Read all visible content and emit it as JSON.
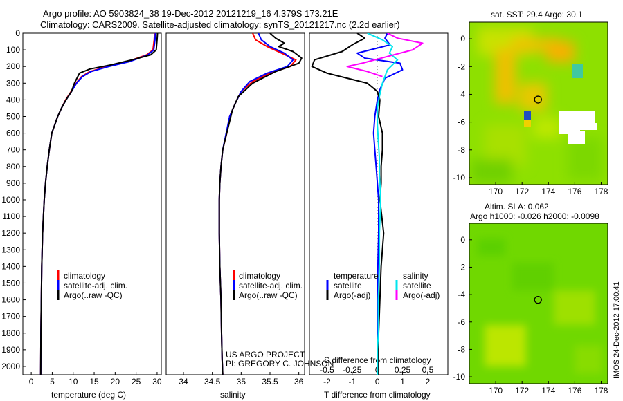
{
  "header": {
    "line1": "Argo profile: AO 5903824_38 19-Dec-2012 20121219_16 4.379S 173.21E",
    "line2": "Climatology: CARS2009. Satellite-adjusted climatology: synTS_20121217.nc (2.2d earlier)"
  },
  "map_top": {
    "label": "sat. SST: 29.4 Argo: 30.1"
  },
  "map_bottom": {
    "label1": "Altim. SLA: 0.062",
    "label2": "Argo h1000: -0.026 h2000: -0.0098"
  },
  "credit": {
    "line1": "US ARGO PROJECT",
    "line2": "PI: GREGORY C. JOHNSON"
  },
  "side_stamp": "IMOS 24-Dec-2012 17:00:41",
  "legend_ts": {
    "items": [
      "climatology",
      "satellite-adj. clim.",
      "Argo(..raw -QC)"
    ]
  },
  "legend_diff": {
    "temp_header": "temperature",
    "sal_header": "salinity",
    "temp_items": [
      "satellite",
      "Argo(-adj)"
    ],
    "sal_items": [
      "satellite",
      "Argo(-adj)"
    ]
  },
  "colors": {
    "climatology": "#ff0000",
    "satellite": "#0000ff",
    "argo": "#000000",
    "sal_satellite": "#00e5ee",
    "sal_argo": "#ff00ff"
  },
  "chart_data": [
    {
      "type": "line",
      "xlabel": "temperature (deg C)",
      "ylabel": "",
      "xlim": [
        -2,
        31
      ],
      "ylim": [
        2050,
        0
      ],
      "xticks": [
        0,
        5,
        10,
        15,
        20,
        25,
        30
      ],
      "yticks": [
        0,
        100,
        200,
        300,
        400,
        500,
        600,
        700,
        800,
        900,
        1000,
        1100,
        1200,
        1300,
        1400,
        1500,
        1600,
        1700,
        1800,
        1900,
        2000
      ],
      "series": [
        {
          "name": "climatology",
          "color": "#ff0000",
          "x": [
            29.4,
            29.3,
            29.0,
            27.5,
            23,
            18,
            14,
            12,
            10.7,
            9.5,
            8.2,
            7.2,
            6.3,
            5.6,
            4.9,
            4.3,
            3.8,
            3.4,
            3.1,
            2.9,
            2.7,
            2.5,
            2.4,
            2.3,
            2.25
          ],
          "y": [
            0,
            40,
            100,
            130,
            170,
            200,
            230,
            260,
            300,
            350,
            400,
            450,
            500,
            550,
            600,
            700,
            800,
            900,
            1000,
            1100,
            1200,
            1400,
            1600,
            1800,
            2050
          ]
        },
        {
          "name": "satellite-adj. clim.",
          "color": "#0000ff",
          "x": [
            29.6,
            29.5,
            29.2,
            27.8,
            23.5,
            18.5,
            14.3,
            12.2,
            10.8,
            9.6,
            8.3,
            7.2,
            6.3,
            5.6,
            4.9,
            4.3,
            3.8,
            3.4,
            3.1,
            2.9,
            2.7,
            2.5,
            2.4,
            2.3,
            2.25
          ],
          "y": [
            0,
            40,
            100,
            130,
            170,
            200,
            230,
            260,
            300,
            350,
            400,
            450,
            500,
            550,
            600,
            700,
            800,
            900,
            1000,
            1100,
            1200,
            1400,
            1600,
            1800,
            2050
          ]
        },
        {
          "name": "Argo(..raw -QC)",
          "color": "#000000",
          "x": [
            30.1,
            30.0,
            29.8,
            28.5,
            24,
            19,
            14,
            11.5,
            10.3,
            9.6,
            8.3,
            7.2,
            6.3,
            5.6,
            4.9,
            4.3,
            3.8,
            3.4,
            3.1,
            2.9,
            2.7,
            2.5,
            2.4,
            2.3,
            2.25
          ],
          "y": [
            0,
            40,
            100,
            130,
            160,
            190,
            215,
            240,
            300,
            350,
            400,
            450,
            500,
            550,
            600,
            700,
            800,
            900,
            1000,
            1100,
            1200,
            1400,
            1600,
            1800,
            2050
          ]
        }
      ]
    },
    {
      "type": "line",
      "xlabel": "salinity",
      "ylabel": "",
      "xlim": [
        33.7,
        36.1
      ],
      "ylim": [
        2050,
        0
      ],
      "xticks": [
        34,
        34.5,
        35,
        35.5,
        36
      ],
      "series": [
        {
          "name": "climatology",
          "color": "#ff0000",
          "x": [
            35.2,
            35.25,
            35.45,
            35.7,
            35.95,
            35.85,
            35.5,
            35.2,
            35.0,
            34.9,
            34.8,
            34.75,
            34.68,
            34.65,
            34.63,
            34.62,
            34.62,
            34.63,
            34.65,
            34.66,
            34.67,
            34.68
          ],
          "y": [
            0,
            40,
            80,
            120,
            160,
            200,
            240,
            290,
            350,
            420,
            500,
            600,
            700,
            800,
            900,
            1000,
            1200,
            1400,
            1600,
            1800,
            1950,
            2050
          ]
        },
        {
          "name": "satellite-adj. clim.",
          "color": "#0000ff",
          "x": [
            35.3,
            35.35,
            35.5,
            35.75,
            35.9,
            35.8,
            35.45,
            35.15,
            35.0,
            34.9,
            34.8,
            34.74,
            34.68,
            34.65,
            34.63,
            34.62,
            34.62,
            34.63,
            34.65,
            34.66,
            34.67,
            34.68
          ],
          "y": [
            0,
            40,
            80,
            120,
            160,
            200,
            240,
            290,
            350,
            420,
            500,
            600,
            700,
            800,
            900,
            1000,
            1200,
            1400,
            1600,
            1800,
            1950,
            2050
          ]
        },
        {
          "name": "Argo(..raw -QC)",
          "color": "#000000",
          "x": [
            35.5,
            35.6,
            35.75,
            35.65,
            35.9,
            36.05,
            36.0,
            35.6,
            35.2,
            34.95,
            34.85,
            34.75,
            34.68,
            34.65,
            34.63,
            34.62,
            34.62,
            34.63,
            34.65,
            34.66,
            34.67,
            34.68
          ],
          "y": [
            0,
            30,
            60,
            80,
            110,
            150,
            180,
            230,
            300,
            380,
            460,
            600,
            700,
            800,
            900,
            1000,
            1200,
            1400,
            1600,
            1800,
            1950,
            2050
          ]
        }
      ]
    },
    {
      "type": "line",
      "xlabel": "T difference from climatology",
      "x2label": "S difference from climatology",
      "xlim": [
        -2.7,
        2.8
      ],
      "x2lim": [
        -0.675,
        0.7
      ],
      "ylim": [
        2050,
        0
      ],
      "xticks": [
        -2,
        -1,
        0,
        1,
        2
      ],
      "x2ticks": [
        -0.5,
        -0.25,
        0,
        0.25,
        0.5
      ],
      "x2ticklabels": [
        "-0.5",
        "-0.25",
        "0",
        "0.25",
        "0.5"
      ],
      "series": [
        {
          "name": "temperature satellite",
          "color": "#0000ff",
          "axis": "T",
          "x": [
            0.4,
            0.3,
            0.5,
            -0.8,
            -0.5,
            0.9,
            1.0,
            0.3,
            0.1,
            0.0,
            -0.1,
            -0.15,
            -0.1,
            -0.05,
            0,
            0.05,
            0.05,
            0.02,
            0.0,
            0.0,
            0.0,
            0.0
          ],
          "y": [
            0,
            30,
            70,
            120,
            150,
            180,
            220,
            270,
            340,
            400,
            500,
            600,
            700,
            800,
            900,
            1000,
            1200,
            1400,
            1600,
            1800,
            1950,
            2050
          ]
        },
        {
          "name": "temperature Argo(-adj)",
          "color": "#000000",
          "axis": "T",
          "x": [
            -0.8,
            -0.5,
            -1.0,
            -1.4,
            -2.5,
            -2.6,
            -2.0,
            -0.4,
            0.0,
            0.1,
            0.05,
            0.2,
            0.2,
            0.15,
            0.15,
            0.1,
            0.25,
            0.15,
            0.1,
            0.05,
            0.05,
            0.05
          ],
          "y": [
            0,
            30,
            70,
            110,
            160,
            200,
            240,
            300,
            350,
            400,
            500,
            600,
            700,
            800,
            900,
            1000,
            1200,
            1400,
            1600,
            1800,
            1950,
            2050
          ]
        },
        {
          "name": "salinity satellite",
          "color": "#00e5ee",
          "axis": "S",
          "x": [
            -0.1,
            0.05,
            0.15,
            0.12,
            0.2,
            0.1,
            0.05,
            0.02,
            0,
            0,
            0.01,
            0.02,
            0.02,
            0.03,
            0.03,
            0.02,
            0.02,
            0.01,
            0.01,
            0.0,
            0.0,
            0.0
          ],
          "y": [
            0,
            40,
            80,
            120,
            160,
            220,
            300,
            380,
            450,
            550,
            650,
            750,
            850,
            950,
            1050,
            1200,
            1400,
            1600,
            1800,
            1900,
            2000,
            2050
          ]
        },
        {
          "name": "salinity Argo(-adj)",
          "color": "#ff00ff",
          "axis": "S",
          "x": [
            0.1,
            0.2,
            0.45,
            0.35,
            0.1,
            -0.15,
            -0.3,
            -0.1,
            0.05
          ],
          "y": [
            0,
            30,
            60,
            100,
            140,
            180,
            200,
            230,
            260
          ]
        }
      ]
    },
    {
      "type": "heatmap",
      "colormap": "jet",
      "xlim": [
        168,
        178.5
      ],
      "ylim": [
        -10.5,
        1.2
      ],
      "xticks": [
        170,
        172,
        174,
        176,
        178
      ],
      "yticks": [
        0,
        -2,
        -4,
        -6,
        -8,
        -10
      ],
      "marker": {
        "x": 173.21,
        "y": -4.379
      }
    },
    {
      "type": "heatmap",
      "colormap": "jet",
      "xlim": [
        168,
        178.5
      ],
      "ylim": [
        -10.5,
        1.2
      ],
      "xticks": [
        170,
        172,
        174,
        176,
        178
      ],
      "yticks": [
        0,
        -2,
        -4,
        -6,
        -8,
        -10
      ],
      "marker": {
        "x": 173.21,
        "y": -4.379
      }
    }
  ]
}
